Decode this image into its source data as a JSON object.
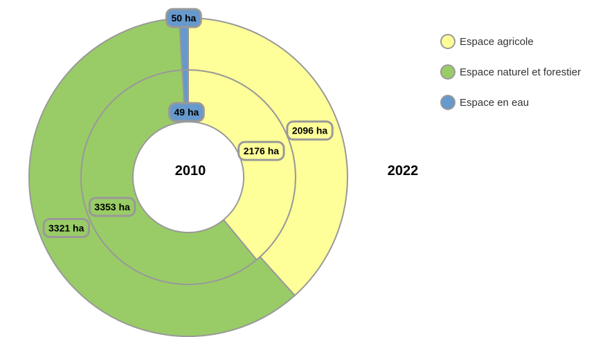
{
  "chart_data": {
    "type": "pie",
    "subtype": "nested-donut",
    "series": [
      {
        "name": "2010",
        "values": [
          {
            "category": "Espace agricole",
            "value": 2176,
            "label": "2176 ha"
          },
          {
            "category": "Espace naturel et forestier",
            "value": 3353,
            "label": "3353 ha"
          },
          {
            "category": "Espace en eau",
            "value": 49,
            "label": "49 ha"
          }
        ]
      },
      {
        "name": "2022",
        "values": [
          {
            "category": "Espace agricole",
            "value": 2096,
            "label": "2096 ha"
          },
          {
            "category": "Espace naturel et forestier",
            "value": 3321,
            "label": "3321 ha"
          },
          {
            "category": "Espace en eau",
            "value": 50,
            "label": "50 ha"
          }
        ]
      }
    ],
    "legend": {
      "position": "top-right",
      "items": [
        {
          "label": "Espace agricole",
          "color": "#ffff99"
        },
        {
          "label": "Espace naturel et forestier",
          "color": "#99cc66"
        },
        {
          "label": "Espace en eau",
          "color": "#6699cc"
        }
      ]
    },
    "colors": {
      "Espace agricole": "#ffff99",
      "Espace naturel et forestier": "#99cc66",
      "Espace en eau": "#6699cc"
    },
    "stroke_color": "#999999"
  }
}
